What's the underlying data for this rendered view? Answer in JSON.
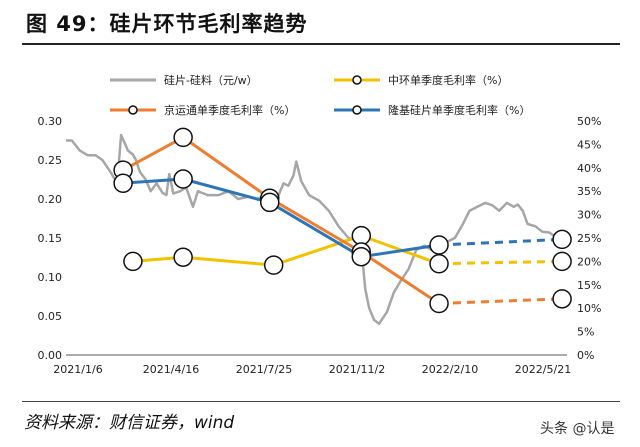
{
  "header": {
    "title": "图 49：硅片环节毛利率趋势"
  },
  "footer": {
    "source": "资料来源：财信证券，wind",
    "watermark": "头条 @认是"
  },
  "chart_data": {
    "type": "line",
    "title": "",
    "x_tick_labels": [
      "2021/1/6",
      "2021/4/16",
      "2021/7/25",
      "2021/11/2",
      "2022/2/10",
      "2022/5/21"
    ],
    "x_range": [
      "2021-01-06",
      "2022-05-30"
    ],
    "left_axis": {
      "range": [
        0,
        0.3
      ],
      "ticks": [
        "0.00",
        "0.05",
        "0.10",
        "0.15",
        "0.20",
        "0.25",
        "0.30"
      ]
    },
    "right_axis": {
      "range": [
        0,
        50
      ],
      "ticks": [
        "0%",
        "5%",
        "10%",
        "15%",
        "20%",
        "25%",
        "30%",
        "35%",
        "40%",
        "45%",
        "50%"
      ]
    },
    "grid": false,
    "legend_position": "top",
    "series": [
      {
        "name": "硅片-硅料（元/w）",
        "axis": "left",
        "color": "#a6a6a6",
        "style": "line",
        "points": [
          [
            "2021-01-06",
            0.275
          ],
          [
            "2021-01-12",
            0.275
          ],
          [
            "2021-01-20",
            0.262
          ],
          [
            "2021-01-28",
            0.256
          ],
          [
            "2021-02-05",
            0.256
          ],
          [
            "2021-02-12",
            0.25
          ],
          [
            "2021-02-20",
            0.235
          ],
          [
            "2021-02-27",
            0.22
          ],
          [
            "2021-03-03",
            0.282
          ],
          [
            "2021-03-10",
            0.262
          ],
          [
            "2021-03-15",
            0.257
          ],
          [
            "2021-03-18",
            0.25
          ],
          [
            "2021-03-22",
            0.235
          ],
          [
            "2021-03-28",
            0.225
          ],
          [
            "2021-04-02",
            0.21
          ],
          [
            "2021-04-08",
            0.22
          ],
          [
            "2021-04-14",
            0.208
          ],
          [
            "2021-04-18",
            0.205
          ],
          [
            "2021-04-21",
            0.232
          ],
          [
            "2021-04-25",
            0.207
          ],
          [
            "2021-05-02",
            0.21
          ],
          [
            "2021-05-08",
            0.215
          ],
          [
            "2021-05-15",
            0.19
          ],
          [
            "2021-05-20",
            0.21
          ],
          [
            "2021-05-30",
            0.205
          ],
          [
            "2021-06-10",
            0.205
          ],
          [
            "2021-06-20",
            0.21
          ],
          [
            "2021-06-30",
            0.2
          ],
          [
            "2021-07-10",
            0.203
          ],
          [
            "2021-07-20",
            0.2
          ],
          [
            "2021-08-01",
            0.21
          ],
          [
            "2021-08-05",
            0.195
          ],
          [
            "2021-08-10",
            0.205
          ],
          [
            "2021-08-15",
            0.22
          ],
          [
            "2021-08-20",
            0.217
          ],
          [
            "2021-08-25",
            0.23
          ],
          [
            "2021-08-28",
            0.248
          ],
          [
            "2021-09-02",
            0.223
          ],
          [
            "2021-09-10",
            0.205
          ],
          [
            "2021-09-20",
            0.198
          ],
          [
            "2021-09-30",
            0.185
          ],
          [
            "2021-10-10",
            0.165
          ],
          [
            "2021-10-20",
            0.15
          ],
          [
            "2021-10-28",
            0.147
          ],
          [
            "2021-11-02",
            0.14
          ],
          [
            "2021-11-06",
            0.085
          ],
          [
            "2021-11-10",
            0.06
          ],
          [
            "2021-11-15",
            0.045
          ],
          [
            "2021-11-20",
            0.04
          ],
          [
            "2021-11-28",
            0.055
          ],
          [
            "2021-12-05",
            0.08
          ],
          [
            "2021-12-12",
            0.095
          ],
          [
            "2021-12-20",
            0.11
          ],
          [
            "2021-12-28",
            0.135
          ],
          [
            "2022-01-05",
            0.14
          ],
          [
            "2022-01-12",
            0.135
          ],
          [
            "2022-01-20",
            0.14
          ],
          [
            "2022-01-28",
            0.145
          ],
          [
            "2022-02-05",
            0.15
          ],
          [
            "2022-02-12",
            0.165
          ],
          [
            "2022-02-20",
            0.185
          ],
          [
            "2022-02-28",
            0.19
          ],
          [
            "2022-03-08",
            0.195
          ],
          [
            "2022-03-15",
            0.192
          ],
          [
            "2022-03-22",
            0.185
          ],
          [
            "2022-03-30",
            0.195
          ],
          [
            "2022-04-06",
            0.19
          ],
          [
            "2022-04-10",
            0.193
          ],
          [
            "2022-04-15",
            0.185
          ],
          [
            "2022-04-20",
            0.168
          ],
          [
            "2022-04-28",
            0.165
          ],
          [
            "2022-05-05",
            0.158
          ],
          [
            "2022-05-12",
            0.157
          ],
          [
            "2022-05-20",
            0.15
          ],
          [
            "2022-05-30",
            0.145
          ]
        ]
      },
      {
        "name": "中环单季度毛利率（%）",
        "axis": "right",
        "color": "#f2c200",
        "points": [
          [
            "2021-03-15",
            20
          ],
          [
            "2021-05-05",
            20.9
          ],
          [
            "2021-08-05",
            19.2
          ],
          [
            "2021-11-02",
            25.5
          ],
          [
            "2022-01-20",
            19.5
          ]
        ],
        "forecast": [
          [
            "2022-01-20",
            19.5
          ],
          [
            "2022-05-25",
            20
          ]
        ]
      },
      {
        "name": "京运通单季度毛利率（%）",
        "axis": "right",
        "color": "#ed7d31",
        "points": [
          [
            "2021-03-05",
            39.5
          ],
          [
            "2021-05-05",
            46.5
          ],
          [
            "2021-08-01",
            33.5
          ],
          [
            "2021-11-02",
            22
          ],
          [
            "2022-01-20",
            11
          ]
        ],
        "forecast": [
          [
            "2022-01-20",
            11
          ],
          [
            "2022-05-25",
            12
          ]
        ]
      },
      {
        "name": "隆基硅片单季度毛利率（%）",
        "axis": "right",
        "color": "#2e75b6",
        "points": [
          [
            "2021-03-05",
            36.7
          ],
          [
            "2021-05-05",
            37.6
          ],
          [
            "2021-08-01",
            32.6
          ],
          [
            "2021-11-02",
            21
          ],
          [
            "2022-01-20",
            23.5
          ]
        ],
        "forecast": [
          [
            "2022-01-20",
            23.5
          ],
          [
            "2022-05-25",
            24.7
          ]
        ]
      }
    ]
  }
}
